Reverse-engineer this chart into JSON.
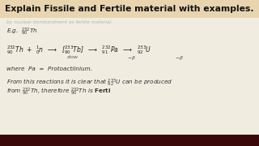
{
  "title": "Explain Fissile and Fertile material with examples.",
  "title_bg": "#e8d5b0",
  "title_color": "#111111",
  "bg_color": "#f0ece0",
  "bottom_bar_color": "#3a0808",
  "faded_line": "by nuclear bombardment as fertile material.",
  "eg_line": "E.g.  $^{232}_{90}$Th",
  "where_line": "where  Pa  =  Protoactiinium.",
  "from_line1": "From this reactions it is clear that $^{233}_{92}$U can be produced",
  "from_line2": "from $^{232}_{90}$Th, therefore $^{232}_{90}$Th is $\\mathbf{Ferti}$"
}
